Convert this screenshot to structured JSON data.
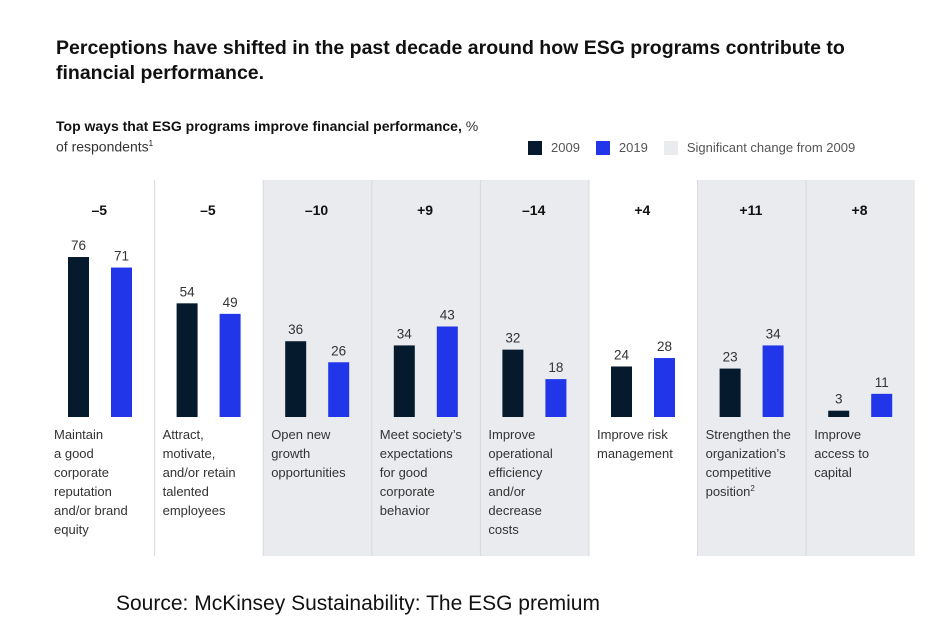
{
  "header": {
    "title": "Perceptions have shifted in the past decade around how ESG programs contribute to financial performance.",
    "subtitle_bold": "Top ways that ESG programs improve financial performance,",
    "subtitle_unit": "% of respondents",
    "subtitle_footnote": "1"
  },
  "legend": [
    {
      "label": "2009",
      "color": "#061a2d"
    },
    {
      "label": "2019",
      "color": "#2136e8"
    },
    {
      "label": "Significant change from 2009",
      "color": "#e9ebef"
    }
  ],
  "source": "Source: McKinsey Sustainability: The ESG premium",
  "chart_data": {
    "type": "bar",
    "title": "Top ways that ESG programs improve financial performance, % of respondents",
    "xlabel": "",
    "ylabel": "% of respondents",
    "ylim": [
      0,
      80
    ],
    "grid": false,
    "legend_position": "top-right",
    "categories": [
      {
        "label": [
          "Maintain",
          "a good",
          "corporate",
          "reputation",
          "and/or brand",
          "equity"
        ],
        "footnote": ""
      },
      {
        "label": [
          "Attract,",
          "motivate,",
          "and/or retain",
          "talented",
          "employees"
        ],
        "footnote": ""
      },
      {
        "label": [
          "Open new",
          "growth",
          "opportunities"
        ],
        "footnote": ""
      },
      {
        "label": [
          "Meet society’s",
          "expectations",
          "for good",
          "corporate",
          "behavior"
        ],
        "footnote": ""
      },
      {
        "label": [
          "Improve",
          "operational",
          "efficiency",
          "and/or",
          "decrease",
          "costs"
        ],
        "footnote": ""
      },
      {
        "label": [
          "Improve risk",
          "management"
        ],
        "footnote": ""
      },
      {
        "label": [
          "Strengthen the",
          "organization’s",
          "competitive",
          "position"
        ],
        "footnote": "2"
      },
      {
        "label": [
          "Improve",
          "access to",
          "capital"
        ],
        "footnote": ""
      }
    ],
    "series": [
      {
        "name": "2009",
        "color": "#061a2d",
        "values": [
          76,
          54,
          36,
          34,
          32,
          24,
          23,
          3
        ]
      },
      {
        "name": "2019",
        "color": "#2136e8",
        "values": [
          71,
          49,
          26,
          43,
          18,
          28,
          34,
          11
        ]
      }
    ],
    "change": [
      "–5",
      "–5",
      "–10",
      "+9",
      "–14",
      "+4",
      "+11",
      "+8"
    ],
    "significant": [
      false,
      false,
      true,
      true,
      true,
      false,
      true,
      true
    ],
    "significant_color": "#e9ebef",
    "divider_color": "#d6d8dc"
  }
}
